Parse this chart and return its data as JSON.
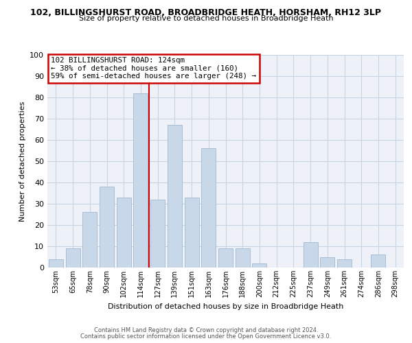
{
  "title_line1": "102, BILLINGSHURST ROAD, BROADBRIDGE HEATH, HORSHAM, RH12 3LP",
  "title_line2": "Size of property relative to detached houses in Broadbridge Heath",
  "xlabel": "Distribution of detached houses by size in Broadbridge Heath",
  "ylabel": "Number of detached properties",
  "bar_labels": [
    "53sqm",
    "65sqm",
    "78sqm",
    "90sqm",
    "102sqm",
    "114sqm",
    "127sqm",
    "139sqm",
    "151sqm",
    "163sqm",
    "176sqm",
    "188sqm",
    "200sqm",
    "212sqm",
    "225sqm",
    "237sqm",
    "249sqm",
    "261sqm",
    "274sqm",
    "286sqm",
    "298sqm"
  ],
  "bar_values": [
    4,
    9,
    26,
    38,
    33,
    82,
    32,
    67,
    33,
    56,
    9,
    9,
    2,
    0,
    0,
    12,
    5,
    4,
    0,
    6,
    0
  ],
  "bar_color": "#c8d8e8",
  "bar_edge_color": "#a0b8d0",
  "vline_x": 5.5,
  "vline_color": "#cc0000",
  "annotation_title": "102 BILLINGSHURST ROAD: 124sqm",
  "annotation_line1": "← 38% of detached houses are smaller (160)",
  "annotation_line2": "59% of semi-detached houses are larger (248) →",
  "annotation_box_edge": "#cc0000",
  "ylim": [
    0,
    100
  ],
  "yticks": [
    0,
    10,
    20,
    30,
    40,
    50,
    60,
    70,
    80,
    90,
    100
  ],
  "grid_color": "#c8d4e4",
  "background_color": "#eef2f8",
  "footnote1": "Contains HM Land Registry data © Crown copyright and database right 2024.",
  "footnote2": "Contains public sector information licensed under the Open Government Licence v3.0."
}
